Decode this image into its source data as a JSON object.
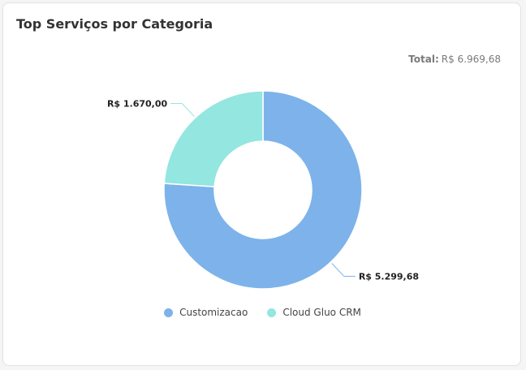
{
  "card": {
    "title": "Top Serviços por Categoria",
    "total_label": "Total:",
    "total_value": "R$ 6.969,68"
  },
  "chart_data": {
    "type": "donut",
    "series": [
      {
        "name": "Customizacao",
        "value": 5299.68,
        "label": "R$ 5.299,68",
        "color": "#7db3ea"
      },
      {
        "name": "Cloud Gluo CRM",
        "value": 1670.0,
        "label": "R$ 1.670,00",
        "color": "#94e6e0"
      }
    ],
    "legend_position": "bottom",
    "start_angle_deg": 0
  }
}
